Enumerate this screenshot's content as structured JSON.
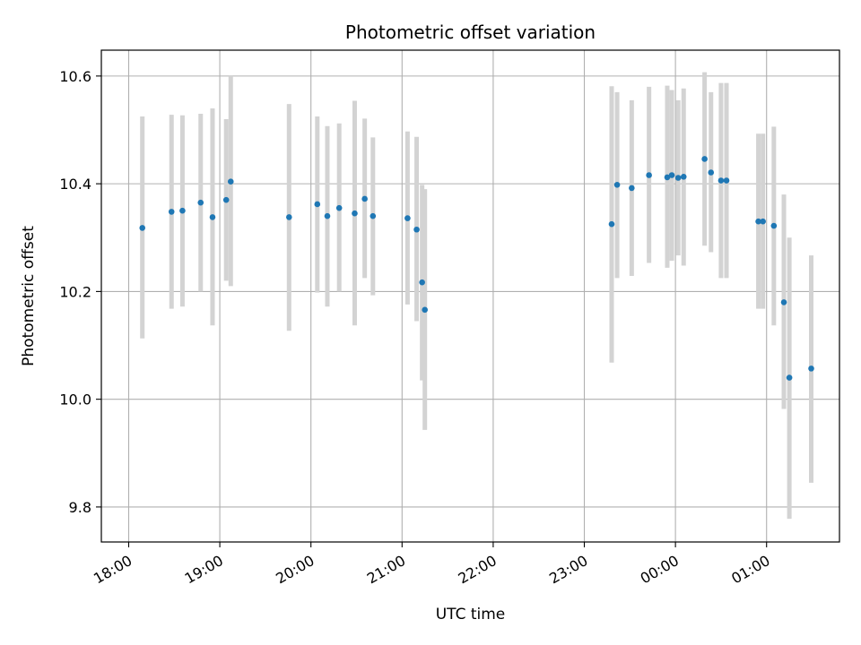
{
  "chart_data": {
    "type": "scatter",
    "title": "Photometric offset variation",
    "xlabel": "UTC time",
    "ylabel": "Photometric offset",
    "x_unit": "hours after 18:00 UTC",
    "xlim": [
      -0.3,
      7.8
    ],
    "ylim": [
      9.735,
      10.648
    ],
    "x_ticks": [
      {
        "value": 0,
        "label": "18:00"
      },
      {
        "value": 1,
        "label": "19:00"
      },
      {
        "value": 2,
        "label": "20:00"
      },
      {
        "value": 3,
        "label": "21:00"
      },
      {
        "value": 4,
        "label": "22:00"
      },
      {
        "value": 5,
        "label": "23:00"
      },
      {
        "value": 6,
        "label": "00:00"
      },
      {
        "value": 7,
        "label": "01:00"
      }
    ],
    "y_ticks": [
      9.8,
      10.0,
      10.2,
      10.4,
      10.6
    ],
    "y_tick_labels": [
      "9.8",
      "10.0",
      "10.2",
      "10.4",
      "10.6"
    ],
    "grid": true,
    "colors": {
      "point": "#1f77b4",
      "errorbar": "#d3d3d3",
      "grid": "#b0b0b0"
    },
    "points": [
      {
        "x": 0.15,
        "y": 10.318,
        "lo": 10.113,
        "hi": 10.525
      },
      {
        "x": 0.47,
        "y": 10.348,
        "lo": 10.168,
        "hi": 10.528
      },
      {
        "x": 0.59,
        "y": 10.35,
        "lo": 10.172,
        "hi": 10.527
      },
      {
        "x": 0.79,
        "y": 10.365,
        "lo": 10.2,
        "hi": 10.53
      },
      {
        "x": 0.92,
        "y": 10.338,
        "lo": 10.137,
        "hi": 10.54
      },
      {
        "x": 1.07,
        "y": 10.37,
        "lo": 10.22,
        "hi": 10.52
      },
      {
        "x": 1.12,
        "y": 10.404,
        "lo": 10.21,
        "hi": 10.6
      },
      {
        "x": 1.76,
        "y": 10.338,
        "lo": 10.127,
        "hi": 10.548
      },
      {
        "x": 2.07,
        "y": 10.362,
        "lo": 10.198,
        "hi": 10.525
      },
      {
        "x": 2.18,
        "y": 10.34,
        "lo": 10.172,
        "hi": 10.507
      },
      {
        "x": 2.31,
        "y": 10.355,
        "lo": 10.2,
        "hi": 10.512
      },
      {
        "x": 2.48,
        "y": 10.345,
        "lo": 10.137,
        "hi": 10.554
      },
      {
        "x": 2.59,
        "y": 10.372,
        "lo": 10.225,
        "hi": 10.521
      },
      {
        "x": 2.68,
        "y": 10.34,
        "lo": 10.193,
        "hi": 10.486
      },
      {
        "x": 3.06,
        "y": 10.336,
        "lo": 10.176,
        "hi": 10.497
      },
      {
        "x": 3.16,
        "y": 10.315,
        "lo": 10.145,
        "hi": 10.487
      },
      {
        "x": 3.22,
        "y": 10.217,
        "lo": 10.035,
        "hi": 10.398
      },
      {
        "x": 3.25,
        "y": 10.166,
        "lo": 9.943,
        "hi": 10.39
      },
      {
        "x": 5.3,
        "y": 10.325,
        "lo": 10.068,
        "hi": 10.581
      },
      {
        "x": 5.36,
        "y": 10.398,
        "lo": 10.225,
        "hi": 10.57
      },
      {
        "x": 5.52,
        "y": 10.392,
        "lo": 10.229,
        "hi": 10.555
      },
      {
        "x": 5.71,
        "y": 10.416,
        "lo": 10.253,
        "hi": 10.58
      },
      {
        "x": 5.91,
        "y": 10.412,
        "lo": 10.244,
        "hi": 10.582
      },
      {
        "x": 5.96,
        "y": 10.416,
        "lo": 10.257,
        "hi": 10.574
      },
      {
        "x": 6.03,
        "y": 10.411,
        "lo": 10.267,
        "hi": 10.555
      },
      {
        "x": 6.09,
        "y": 10.413,
        "lo": 10.248,
        "hi": 10.577
      },
      {
        "x": 6.32,
        "y": 10.446,
        "lo": 10.285,
        "hi": 10.607
      },
      {
        "x": 6.39,
        "y": 10.421,
        "lo": 10.273,
        "hi": 10.57
      },
      {
        "x": 6.5,
        "y": 10.406,
        "lo": 10.225,
        "hi": 10.587
      },
      {
        "x": 6.56,
        "y": 10.406,
        "lo": 10.225,
        "hi": 10.587
      },
      {
        "x": 6.91,
        "y": 10.33,
        "lo": 10.168,
        "hi": 10.493
      },
      {
        "x": 6.96,
        "y": 10.33,
        "lo": 10.168,
        "hi": 10.493
      },
      {
        "x": 7.08,
        "y": 10.322,
        "lo": 10.137,
        "hi": 10.506
      },
      {
        "x": 7.19,
        "y": 10.18,
        "lo": 9.982,
        "hi": 10.38
      },
      {
        "x": 7.25,
        "y": 10.04,
        "lo": 9.778,
        "hi": 10.3
      },
      {
        "x": 7.49,
        "y": 10.057,
        "lo": 9.845,
        "hi": 10.267
      }
    ]
  }
}
